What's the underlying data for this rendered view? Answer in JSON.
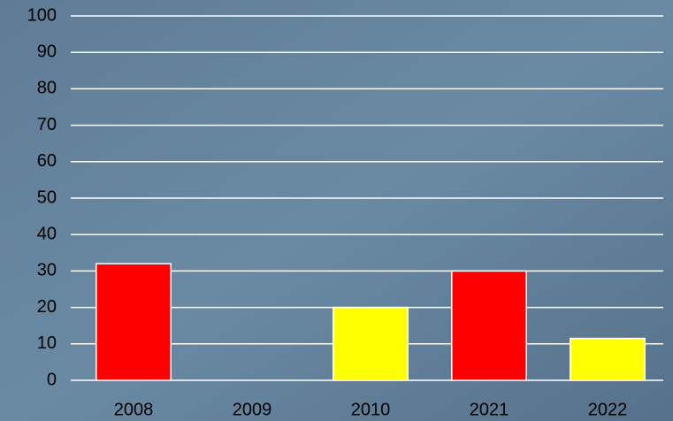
{
  "chart_data": {
    "type": "bar",
    "categories": [
      "2008",
      "2009",
      "2010",
      "2021",
      "2022"
    ],
    "values": [
      32,
      null,
      20,
      30,
      11.5
    ],
    "colors": [
      "#ff0000",
      null,
      "#ffff00",
      "#ff0000",
      "#ffff00"
    ],
    "ylim": [
      0,
      100
    ],
    "yticks": [
      0,
      10,
      20,
      30,
      40,
      50,
      60,
      70,
      80,
      90,
      100
    ],
    "grid": true
  }
}
